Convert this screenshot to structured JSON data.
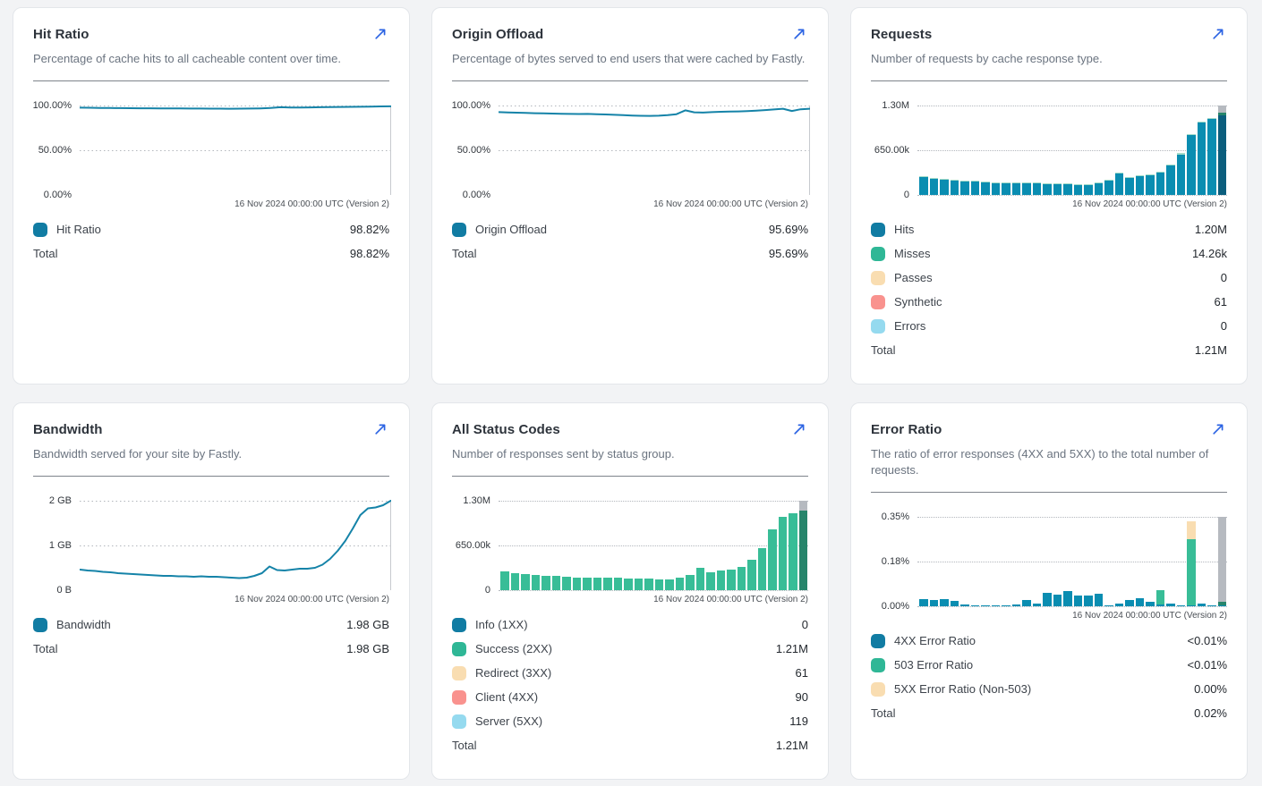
{
  "page": {
    "background": "#f2f3f5"
  },
  "icons": {
    "expand": "diagonal-arrow-up-right"
  },
  "colors": {
    "accent": "#2b63e3",
    "blue": "#117ca3",
    "barBlue": "#0a8db1",
    "blueDark": "#0b5e7d",
    "green": "#2fb796",
    "barGreen": "#38bd97",
    "greenDark": "#27856b",
    "mint": "#a5dcc9",
    "tan": "#f9ddb1",
    "salmon": "#f9928e",
    "lightblue": "#95daef",
    "gray": "#b6bac0",
    "line": "#1583a8"
  },
  "cards": [
    {
      "id": "hit-ratio",
      "title": "Hit Ratio",
      "description": "Percentage of cache hits to all cacheable content over time.",
      "chart": {
        "type": "line",
        "title": "Hit Ratio",
        "ymax": 100,
        "ylim": [
          0,
          100
        ],
        "yticks": [
          "100.00%",
          "50.00%",
          "0.00%"
        ],
        "xlabel": "16 Nov 2024 00:00:00 UTC (Version 2)",
        "series": [
          {
            "name": "Hit Ratio",
            "unit": "%",
            "values": [
              97.6,
              97.5,
              97.3,
              97.2,
              97.1,
              97.0,
              96.9,
              96.9,
              96.8,
              96.8,
              96.7,
              96.6,
              96.6,
              96.5,
              96.5,
              96.4,
              96.5,
              96.6,
              96.8,
              97.2,
              98.1,
              97.7,
              97.8,
              97.9,
              98.1,
              98.2,
              98.4,
              98.5,
              98.6,
              98.8,
              99.0,
              99.1
            ]
          }
        ]
      },
      "legend": [
        {
          "swatch": "blue",
          "label": "Hit Ratio",
          "value": "98.82%"
        }
      ],
      "total": {
        "label": "Total",
        "value": "98.82%"
      }
    },
    {
      "id": "origin-offload",
      "title": "Origin Offload",
      "description": "Percentage of bytes served to end users that were cached by Fastly.",
      "chart": {
        "type": "line",
        "title": "Origin Offload",
        "ymax": 100,
        "ylim": [
          0,
          100
        ],
        "yticks": [
          "100.00%",
          "50.00%",
          "0.00%"
        ],
        "xlabel": "16 Nov 2024 00:00:00 UTC (Version 2)",
        "series": [
          {
            "name": "Origin Offload",
            "unit": "%",
            "values": [
              92.6,
              92.3,
              92.0,
              91.7,
              91.4,
              91.2,
              91.0,
              90.8,
              90.6,
              90.5,
              90.6,
              90.3,
              90.0,
              89.6,
              89.2,
              88.8,
              88.5,
              88.4,
              88.6,
              89.2,
              90.3,
              94.6,
              92.4,
              92.1,
              92.6,
              93.0,
              93.2,
              93.4,
              93.8,
              94.3,
              94.9,
              95.6,
              96.4,
              93.9,
              95.8,
              96.4
            ]
          }
        ]
      },
      "legend": [
        {
          "swatch": "blue",
          "label": "Origin Offload",
          "value": "95.69%"
        }
      ],
      "total": {
        "label": "Total",
        "value": "95.69%"
      }
    },
    {
      "id": "requests",
      "title": "Requests",
      "description": "Number of requests by cache response type.",
      "chart": {
        "type": "bar",
        "title": "Requests",
        "ymax": 1300000,
        "ylim": [
          0,
          1300000
        ],
        "yticks": [
          "1.30M",
          "650.00k",
          "0"
        ],
        "xlabel": "16 Nov 2024 00:00:00 UTC (Version 2)",
        "bars": [
          [
            [
              "barBlue",
              257000
            ],
            [
              "mint",
              14000
            ]
          ],
          [
            [
              "barBlue",
              231000
            ],
            [
              "mint",
              14000
            ]
          ],
          [
            [
              "barBlue",
              218000
            ],
            [
              "mint",
              14000
            ]
          ],
          [
            [
              "barBlue",
              206000
            ],
            [
              "mint",
              14000
            ]
          ],
          [
            [
              "barBlue",
              199000
            ],
            [
              "mint",
              14000
            ]
          ],
          [
            [
              "barBlue",
              199000
            ],
            [
              "mint",
              14000
            ]
          ],
          [
            [
              "barBlue",
              186000
            ],
            [
              "mint",
              14000
            ]
          ],
          [
            [
              "barBlue",
              173000
            ],
            [
              "mint",
              14000
            ]
          ],
          [
            [
              "barBlue",
              167000
            ],
            [
              "mint",
              14000
            ]
          ],
          [
            [
              "barBlue",
              173000
            ],
            [
              "mint",
              14000
            ]
          ],
          [
            [
              "barBlue",
              173000
            ],
            [
              "mint",
              14000
            ]
          ],
          [
            [
              "barBlue",
              167000
            ],
            [
              "mint",
              14000
            ]
          ],
          [
            [
              "barBlue",
              161000
            ],
            [
              "mint",
              14000
            ]
          ],
          [
            [
              "barBlue",
              154000
            ],
            [
              "mint",
              14000
            ]
          ],
          [
            [
              "barBlue",
              154000
            ],
            [
              "mint",
              14000
            ]
          ],
          [
            [
              "barBlue",
              141000
            ],
            [
              "mint",
              14000
            ]
          ],
          [
            [
              "barBlue",
              148000
            ],
            [
              "mint",
              14000
            ]
          ],
          [
            [
              "barBlue",
              167000
            ],
            [
              "mint",
              14000
            ]
          ],
          [
            [
              "barBlue",
              212000
            ],
            [
              "mint",
              14000
            ]
          ],
          [
            [
              "barBlue",
              308000
            ],
            [
              "mint",
              14000
            ]
          ],
          [
            [
              "barBlue",
              244000
            ],
            [
              "mint",
              14000
            ]
          ],
          [
            [
              "barBlue",
              270000
            ],
            [
              "mint",
              14000
            ]
          ],
          [
            [
              "barBlue",
              289000
            ],
            [
              "mint",
              14000
            ]
          ],
          [
            [
              "barBlue",
              328000
            ],
            [
              "mint",
              14000
            ]
          ],
          [
            [
              "barBlue",
              424000
            ],
            [
              "mint",
              14000
            ]
          ],
          [
            [
              "barBlue",
              591000
            ],
            [
              "mint",
              14000
            ]
          ],
          [
            [
              "barBlue",
              868000
            ],
            [
              "mint",
              14000
            ]
          ],
          [
            [
              "barBlue",
              1050000
            ],
            [
              "mint",
              14000
            ]
          ],
          [
            [
              "barBlue",
              1110000
            ],
            [
              "mint",
              14000
            ]
          ],
          [
            [
              "blueDark",
              1160000
            ],
            [
              "greenDark",
              30000
            ],
            [
              "gray",
              110000
            ]
          ]
        ]
      },
      "legend": [
        {
          "swatch": "blue",
          "label": "Hits",
          "value": "1.20M"
        },
        {
          "swatch": "green",
          "label": "Misses",
          "value": "14.26k"
        },
        {
          "swatch": "tan",
          "label": "Passes",
          "value": "0"
        },
        {
          "swatch": "salmon",
          "label": "Synthetic",
          "value": "61"
        },
        {
          "swatch": "lightblue",
          "label": "Errors",
          "value": "0"
        }
      ],
      "total": {
        "label": "Total",
        "value": "1.21M"
      }
    },
    {
      "id": "bandwidth",
      "title": "Bandwidth",
      "description": "Bandwidth served for your site by Fastly.",
      "chart": {
        "type": "line",
        "title": "Bandwidth",
        "ymax": 2,
        "ylim": [
          0,
          2
        ],
        "yticks": [
          "2 GB",
          "1 GB",
          "0 B"
        ],
        "xlabel": "16 Nov 2024 00:00:00 UTC (Version 2)",
        "series": [
          {
            "name": "Bandwidth",
            "unit": "GB",
            "values": [
              0.46,
              0.44,
              0.43,
              0.41,
              0.4,
              0.38,
              0.37,
              0.36,
              0.35,
              0.34,
              0.33,
              0.32,
              0.32,
              0.31,
              0.31,
              0.3,
              0.31,
              0.3,
              0.3,
              0.29,
              0.28,
              0.27,
              0.28,
              0.32,
              0.38,
              0.53,
              0.45,
              0.44,
              0.46,
              0.48,
              0.48,
              0.5,
              0.57,
              0.7,
              0.88,
              1.1,
              1.38,
              1.68,
              1.83,
              1.85,
              1.9,
              2.0
            ]
          }
        ]
      },
      "legend": [
        {
          "swatch": "blue",
          "label": "Bandwidth",
          "value": "1.98 GB"
        }
      ],
      "total": {
        "label": "Total",
        "value": "1.98 GB"
      }
    },
    {
      "id": "all-status-codes",
      "title": "All Status Codes",
      "description": "Number of responses sent by status group.",
      "chart": {
        "type": "bar",
        "title": "All Status Codes",
        "ymax": 1300000,
        "ylim": [
          0,
          1300000
        ],
        "yticks": [
          "1.30M",
          "650.00k",
          "0"
        ],
        "xlabel": "16 Nov 2024 00:00:00 UTC (Version 2)",
        "bars": [
          [
            [
              "barGreen",
              271000
            ]
          ],
          [
            [
              "barGreen",
              245000
            ]
          ],
          [
            [
              "barGreen",
              232000
            ]
          ],
          [
            [
              "barGreen",
              220000
            ]
          ],
          [
            [
              "barGreen",
              213000
            ]
          ],
          [
            [
              "barGreen",
              213000
            ]
          ],
          [
            [
              "barGreen",
              200000
            ]
          ],
          [
            [
              "barGreen",
              187000
            ]
          ],
          [
            [
              "barGreen",
              181000
            ]
          ],
          [
            [
              "barGreen",
              187000
            ]
          ],
          [
            [
              "barGreen",
              187000
            ]
          ],
          [
            [
              "barGreen",
              181000
            ]
          ],
          [
            [
              "barGreen",
              175000
            ]
          ],
          [
            [
              "barGreen",
              168000
            ]
          ],
          [
            [
              "barGreen",
              168000
            ]
          ],
          [
            [
              "barGreen",
              155000
            ]
          ],
          [
            [
              "barGreen",
              162000
            ]
          ],
          [
            [
              "barGreen",
              181000
            ]
          ],
          [
            [
              "barGreen",
              226000
            ]
          ],
          [
            [
              "barGreen",
              322000
            ]
          ],
          [
            [
              "barGreen",
              258000
            ]
          ],
          [
            [
              "barGreen",
              284000
            ]
          ],
          [
            [
              "barGreen",
              303000
            ]
          ],
          [
            [
              "barGreen",
              342000
            ]
          ],
          [
            [
              "barGreen",
              438000
            ]
          ],
          [
            [
              "barGreen",
              605000
            ]
          ],
          [
            [
              "barGreen",
              882000
            ]
          ],
          [
            [
              "barGreen",
              1064000
            ]
          ],
          [
            [
              "barGreen",
              1124000
            ]
          ],
          [
            [
              "greenDark",
              1160000
            ],
            [
              "gray",
              140000
            ]
          ]
        ]
      },
      "legend": [
        {
          "swatch": "blue",
          "label": "Info (1XX)",
          "value": "0"
        },
        {
          "swatch": "green",
          "label": "Success (2XX)",
          "value": "1.21M"
        },
        {
          "swatch": "tan",
          "label": "Redirect (3XX)",
          "value": "61"
        },
        {
          "swatch": "salmon",
          "label": "Client (4XX)",
          "value": "90"
        },
        {
          "swatch": "lightblue",
          "label": "Server (5XX)",
          "value": "119"
        }
      ],
      "total": {
        "label": "Total",
        "value": "1.21M"
      }
    },
    {
      "id": "error-ratio",
      "title": "Error Ratio",
      "description": "The ratio of error responses (4XX and 5XX) to the total number of requests.",
      "chart": {
        "type": "bar",
        "title": "Error Ratio",
        "ymax": 0.35,
        "ylim": [
          0,
          0.35
        ],
        "yticks": [
          "0.35%",
          "0.18%",
          "0.00%"
        ],
        "xlabel": "16 Nov 2024 00:00:00 UTC (Version 2)",
        "bars": [
          [
            [
              "barBlue",
              0.027
            ]
          ],
          [
            [
              "barBlue",
              0.023
            ]
          ],
          [
            [
              "barBlue",
              0.029
            ]
          ],
          [
            [
              "barBlue",
              0.021
            ]
          ],
          [
            [
              "barBlue",
              0.008
            ]
          ],
          [
            [
              "barBlue",
              0.002
            ]
          ],
          [
            [
              "barBlue",
              0.002
            ]
          ],
          [
            [
              "barBlue",
              0.002
            ]
          ],
          [
            [
              "barBlue",
              0.002
            ]
          ],
          [
            [
              "barBlue",
              0.007
            ]
          ],
          [
            [
              "barBlue",
              0.026
            ]
          ],
          [
            [
              "barBlue",
              0.009
            ]
          ],
          [
            [
              "barBlue",
              0.053
            ]
          ],
          [
            [
              "barBlue",
              0.047
            ]
          ],
          [
            [
              "barBlue",
              0.058
            ]
          ],
          [
            [
              "barBlue",
              0.043
            ]
          ],
          [
            [
              "barBlue",
              0.043
            ]
          ],
          [
            [
              "barBlue",
              0.049
            ]
          ],
          [
            [
              "barBlue",
              0.004
            ]
          ],
          [
            [
              "barBlue",
              0.009
            ]
          ],
          [
            [
              "barBlue",
              0.026
            ]
          ],
          [
            [
              "barBlue",
              0.032
            ]
          ],
          [
            [
              "barBlue",
              0.019
            ]
          ],
          [
            [
              "barBlue",
              0.008
            ],
            [
              "barGreen",
              0.056
            ]
          ],
          [
            [
              "barBlue",
              0.009
            ]
          ],
          [
            [
              "barBlue",
              0.004
            ]
          ],
          [
            [
              "barBlue",
              0.004
            ],
            [
              "barGreen",
              0.26
            ],
            [
              "tan",
              0.07
            ]
          ],
          [
            [
              "barBlue",
              0.009
            ]
          ],
          [
            [
              "barBlue",
              0.003
            ]
          ],
          [
            [
              "barBlue",
              0.004
            ],
            [
              "greenDark",
              0.012
            ],
            [
              "gray",
              0.334
            ]
          ]
        ]
      },
      "legend": [
        {
          "swatch": "blue",
          "label": "4XX Error Ratio",
          "value": "<0.01%"
        },
        {
          "swatch": "green",
          "label": "503 Error Ratio",
          "value": "<0.01%"
        },
        {
          "swatch": "tan",
          "label": "5XX Error Ratio (Non-503)",
          "value": "0.00%"
        }
      ],
      "total": {
        "label": "Total",
        "value": "0.02%"
      }
    }
  ]
}
